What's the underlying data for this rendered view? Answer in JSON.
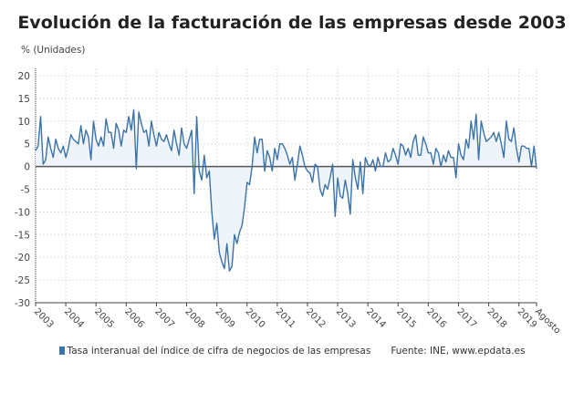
{
  "chart_data": {
    "type": "area",
    "title": "Evolución de la facturación de las empresas desde 2003",
    "ylabel": "% (Unidades)",
    "xlabel": "",
    "ylim": [
      -30,
      20
    ],
    "yticks": [
      -30,
      -25,
      -20,
      -15,
      -10,
      -5,
      0,
      5,
      10,
      15,
      20
    ],
    "xticks": [
      "2003",
      "2004",
      "2005",
      "2006",
      "2007",
      "2008",
      "2009",
      "2010",
      "2011",
      "2012",
      "2013",
      "2014",
      "2015",
      "2016",
      "2017",
      "2018",
      "2019",
      "Agosto"
    ],
    "x_start": "2003-01",
    "x_end": "2019-08",
    "frequency": "monthly",
    "grid": true,
    "legend_position": "bottom",
    "series": [
      {
        "name": "Tasa interanual del índice de cifra de negocios de las empresas",
        "color": "#3b73a8",
        "fill": "#eef4fa",
        "values": [
          3.5,
          4.5,
          11,
          0.5,
          1.5,
          6.5,
          4,
          2,
          6,
          4,
          3,
          4.5,
          2,
          4,
          7,
          6,
          5.5,
          5,
          9,
          5,
          8,
          6.5,
          1.5,
          10,
          6,
          4.5,
          6.5,
          4.5,
          10.5,
          7.5,
          7.5,
          4,
          9.5,
          8,
          4.5,
          8,
          7.5,
          11,
          8,
          12.5,
          -0.5,
          12,
          9.5,
          7.5,
          8,
          4.5,
          10,
          7,
          4.5,
          7.5,
          6,
          5.5,
          7,
          5,
          3.5,
          8,
          5,
          2.5,
          8.5,
          5,
          4,
          6,
          8,
          -6,
          11,
          -1,
          -3,
          2.5,
          -2.5,
          -1,
          -10,
          -16,
          -12.5,
          -19,
          -21,
          -22.5,
          -17,
          -23,
          -22,
          -15,
          -17,
          -14.5,
          -13,
          -9,
          -3.5,
          -4,
          0,
          6.5,
          3,
          6,
          6,
          -1,
          3.5,
          2,
          -1,
          4,
          1.5,
          5,
          5,
          4,
          2.5,
          0.5,
          2,
          -3,
          0.5,
          4.5,
          2.5,
          0,
          -1,
          -1.5,
          -3.5,
          0.5,
          0,
          -5,
          -6.5,
          -4,
          -5,
          -2.5,
          0.5,
          -11,
          -2.5,
          -6.5,
          -7,
          -3,
          -6,
          -10.5,
          1.5,
          -2.5,
          -5,
          1,
          -6,
          2,
          0.5,
          0,
          1.5,
          -1,
          2,
          0,
          0,
          3,
          1,
          1.5,
          4,
          2.5,
          0.5,
          5,
          4.5,
          2.5,
          4,
          2,
          5.5,
          7,
          2.5,
          2.5,
          6.5,
          5,
          3,
          3,
          0.5,
          4,
          3,
          0,
          2.5,
          1,
          3.5,
          2,
          2,
          -2.5,
          5,
          2.5,
          1.5,
          6,
          4,
          10,
          6,
          11.5,
          1.5,
          10,
          7.5,
          5.5,
          6,
          6.5,
          7.5,
          5.5,
          7.5,
          5,
          2,
          10,
          6,
          5.5,
          8.5,
          4,
          1,
          4.5,
          4.5,
          4,
          4,
          0,
          4.5,
          -0.5
        ]
      }
    ],
    "source": "Fuente: INE, www.epdata.es"
  }
}
